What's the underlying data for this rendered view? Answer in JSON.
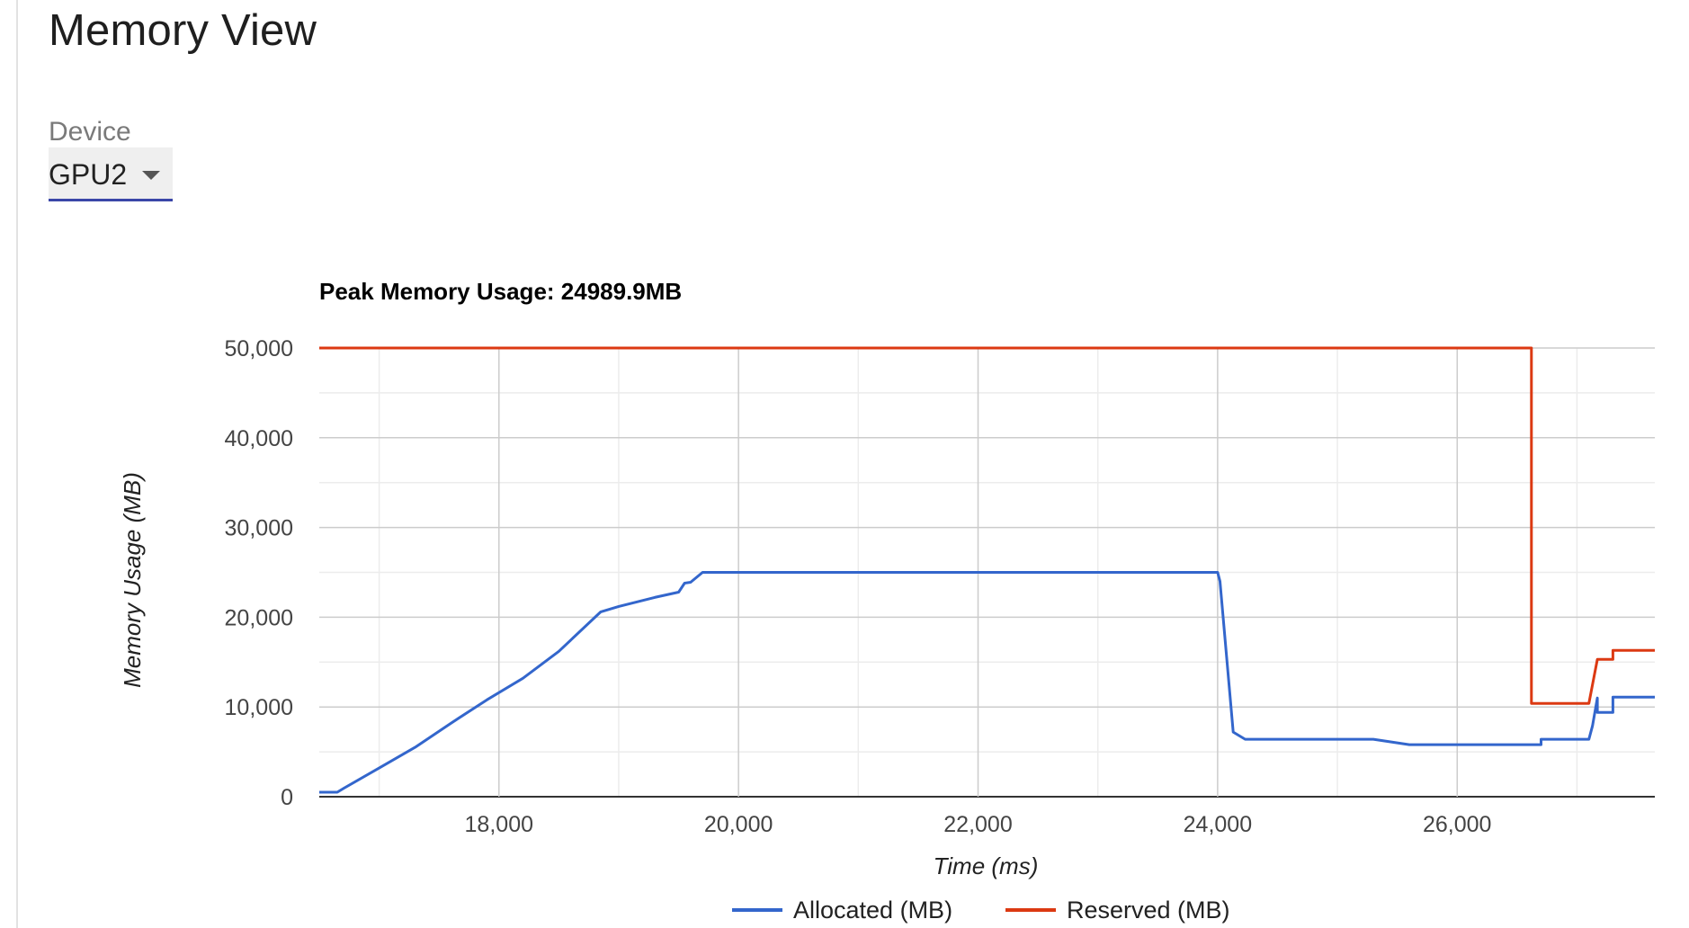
{
  "page": {
    "title": "Memory View"
  },
  "device": {
    "label": "Device",
    "selected": "GPU2"
  },
  "colors": {
    "allocated": "#3366cc",
    "reserved": "#dc3912",
    "accent": "#3a46a8"
  },
  "chart_data": {
    "type": "line",
    "title": "Peak Memory Usage: 24989.9MB",
    "xlabel": "Time (ms)",
    "ylabel": "Memory Usage (MB)",
    "xlim": [
      16500,
      27650
    ],
    "ylim": [
      0,
      50000
    ],
    "x_ticks": [
      18000,
      20000,
      22000,
      24000,
      26000
    ],
    "x_tick_labels": [
      "18,000",
      "20,000",
      "22,000",
      "24,000",
      "26,000"
    ],
    "y_ticks": [
      0,
      10000,
      20000,
      30000,
      40000,
      50000
    ],
    "y_tick_labels": [
      "0",
      "10,000",
      "20,000",
      "30,000",
      "40,000",
      "50,000"
    ],
    "grid": true,
    "legend_position": "bottom",
    "series": [
      {
        "name": "Allocated (MB)",
        "color": "#3366cc",
        "points": [
          [
            16500,
            500
          ],
          [
            16650,
            500
          ],
          [
            16700,
            900
          ],
          [
            17000,
            3200
          ],
          [
            17300,
            5500
          ],
          [
            17600,
            8200
          ],
          [
            17900,
            10800
          ],
          [
            18200,
            13200
          ],
          [
            18500,
            16200
          ],
          [
            18850,
            20600
          ],
          [
            19000,
            21200
          ],
          [
            19300,
            22200
          ],
          [
            19500,
            22800
          ],
          [
            19550,
            23800
          ],
          [
            19600,
            23900
          ],
          [
            19700,
            25000
          ],
          [
            20000,
            25000
          ],
          [
            22000,
            25000
          ],
          [
            24000,
            25000
          ],
          [
            24020,
            24000
          ],
          [
            24130,
            7200
          ],
          [
            24230,
            6400
          ],
          [
            25300,
            6400
          ],
          [
            25600,
            5800
          ],
          [
            26700,
            5800
          ],
          [
            26700,
            6400
          ],
          [
            27100,
            6400
          ],
          [
            27130,
            7900
          ],
          [
            27170,
            11000
          ],
          [
            27170,
            9400
          ],
          [
            27300,
            9400
          ],
          [
            27300,
            11100
          ],
          [
            27650,
            11100
          ]
        ]
      },
      {
        "name": "Reserved (MB)",
        "color": "#dc3912",
        "points": [
          [
            16500,
            50000
          ],
          [
            26620,
            50000
          ],
          [
            26620,
            10400
          ],
          [
            27100,
            10400
          ],
          [
            27170,
            15300
          ],
          [
            27300,
            15300
          ],
          [
            27300,
            16300
          ],
          [
            27650,
            16300
          ]
        ]
      }
    ]
  }
}
